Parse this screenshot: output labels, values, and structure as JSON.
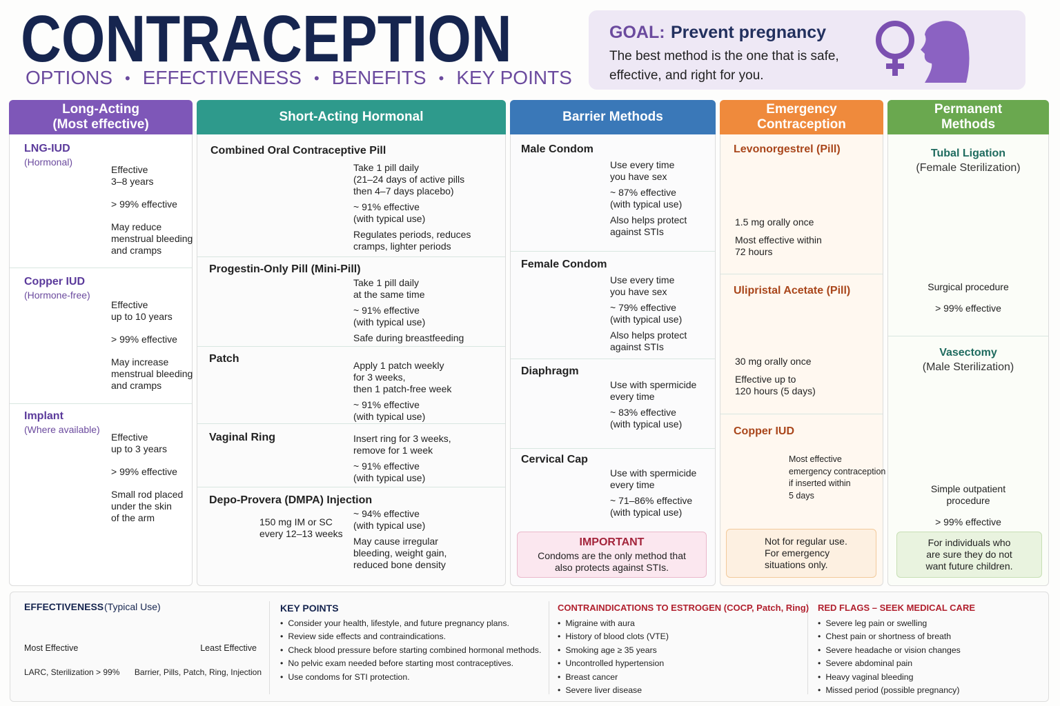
{
  "header": {
    "title": "CONTRACEPTION",
    "subtitle": [
      "OPTIONS",
      "EFFECTIVENESS",
      "BENEFITS",
      "KEY POINTS"
    ]
  },
  "goal": {
    "label": "GOAL:",
    "heading": "Prevent pregnancy",
    "text": "The best method is the one that is safe,\neffective, and right for you."
  },
  "columns": [
    {
      "header": "Long-Acting\n(Most effective)",
      "items": [
        {
          "name": "LNG-IUD",
          "subtitle": "(Hormonal)",
          "notes": [
            "Effective\n3–8 years",
            "> 99% effective",
            "May reduce\nmenstrual bleeding\nand cramps"
          ]
        },
        {
          "name": "Copper IUD",
          "subtitle": "(Hormone-free)",
          "notes": [
            "Effective\nup to 10 years",
            "> 99% effective",
            "May increase\nmenstrual bleeding\nand cramps"
          ]
        },
        {
          "name": "Implant",
          "subtitle": "(Where available)",
          "notes": [
            "Effective\nup to 3 years",
            "> 99% effective",
            "Small rod placed\nunder the skin\nof the arm"
          ]
        }
      ]
    },
    {
      "header": "Short-Acting Hormonal",
      "items": [
        {
          "name": "Combined Oral Contraceptive Pill",
          "notes": [
            "Take 1 pill daily\n(21–24 days of active pills\nthen 4–7 days placebo)",
            "~ 91% effective\n(with typical use)",
            "Regulates periods, reduces\ncramps, lighter periods"
          ]
        },
        {
          "name": "Progestin-Only Pill (Mini-Pill)",
          "notes": [
            "Take 1 pill daily\nat the same time",
            "~ 91% effective\n(with typical use)",
            "Safe during breastfeeding"
          ]
        },
        {
          "name": "Patch",
          "notes": [
            "Apply 1 patch weekly\nfor 3 weeks,\nthen 1 patch-free week",
            "~ 91% effective\n(with typical use)"
          ]
        },
        {
          "name": "Vaginal Ring",
          "notes": [
            "Insert ring for 3 weeks,\nremove for 1 week",
            "~ 91% effective\n(with typical use)"
          ]
        },
        {
          "name": "Depo-Provera (DMPA) Injection",
          "dose": "150 mg IM or SC\nevery 12–13 weeks",
          "notes": [
            "~ 94% effective\n(with typical use)",
            "May cause irregular\nbleeding, weight gain,\nreduced bone density"
          ]
        }
      ]
    },
    {
      "header": "Barrier Methods",
      "items": [
        {
          "name": "Male Condom",
          "notes": [
            "Use every time\nyou have sex",
            "~ 87% effective\n(with typical use)",
            "Also helps protect\nagainst STIs"
          ]
        },
        {
          "name": "Female Condom",
          "notes": [
            "Use every time\nyou have sex",
            "~ 79% effective\n(with typical use)",
            "Also helps protect\nagainst STIs"
          ]
        },
        {
          "name": "Diaphragm",
          "notes": [
            "Use with spermicide\nevery time",
            "~ 83% effective\n(with typical use)"
          ]
        },
        {
          "name": "Cervical Cap",
          "notes": [
            "Use with spermicide\nevery time",
            "~ 71–86% effective\n(with typical use)"
          ]
        }
      ],
      "note": {
        "title": "IMPORTANT",
        "text": "Condoms are the only method that\nalso protects against STIs."
      }
    },
    {
      "header": "Emergency\nContraception",
      "items": [
        {
          "name": "Levonorgestrel (Pill)",
          "notes": [
            "1.5 mg orally once",
            "Most effective within\n72 hours"
          ]
        },
        {
          "name": "Ulipristal Acetate (Pill)",
          "notes": [
            "30 mg orally once",
            "Effective up to\n120 hours (5 days)"
          ]
        },
        {
          "name": "Copper IUD",
          "notes": [
            "Most effective\nemergency contraception\nif inserted within\n5 days"
          ]
        }
      ],
      "note": {
        "text": "Not for regular use.\nFor emergency\nsituations only."
      }
    },
    {
      "header": "Permanent\nMethods",
      "items": [
        {
          "name": "Tubal Ligation",
          "subtitle": "(Female Sterilization)",
          "notes": [
            "Surgical procedure",
            "> 99% effective"
          ]
        },
        {
          "name": "Vasectomy",
          "subtitle": "(Male Sterilization)",
          "notes": [
            "Simple outpatient\nprocedure",
            "> 99% effective"
          ]
        }
      ],
      "note": {
        "text": "For individuals who\nare sure they do not\nwant future children."
      }
    }
  ],
  "bottom": {
    "effectiveness": {
      "title": "EFFECTIVENESS",
      "qualifier": "(Typical Use)",
      "left": "Most Effective",
      "right": "Least Effective",
      "left_detail": "LARC, Sterilization > 99%",
      "right_detail": "Barrier, Pills, Patch, Ring, Injection"
    },
    "key_points": {
      "title": "KEY POINTS",
      "items": [
        "Consider your health, lifestyle, and future pregnancy plans.",
        "Review side effects and contraindications.",
        "Check blood pressure before starting combined hormonal methods.",
        "No pelvic exam needed before starting most contraceptives.",
        "Use condoms for STI protection."
      ]
    },
    "contraindications": {
      "title": "CONTRAINDICATIONS TO ESTROGEN (COCP, Patch, Ring)",
      "items": [
        "Migraine with aura",
        "History of blood clots (VTE)",
        "Smoking age ≥ 35 years",
        "Uncontrolled hypertension",
        "Breast cancer",
        "Severe liver disease"
      ]
    },
    "red_flags": {
      "title": "RED FLAGS – SEEK MEDICAL CARE",
      "items": [
        "Severe leg pain or swelling",
        "Chest pain or shortness of breath",
        "Severe headache or vision changes",
        "Severe abdominal pain",
        "Heavy vaginal bleeding",
        "Missed period (possible pregnancy)"
      ]
    }
  }
}
